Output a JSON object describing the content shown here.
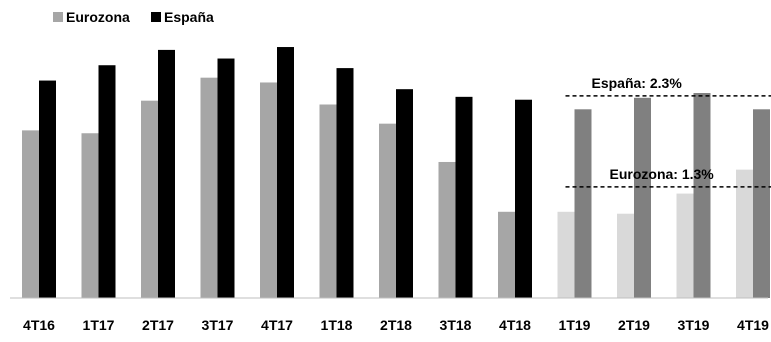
{
  "chart_data": {
    "type": "bar",
    "categories": [
      "4T16",
      "1T17",
      "2T17",
      "3T17",
      "4T17",
      "1T18",
      "2T18",
      "3T18",
      "4T18",
      "1T19",
      "2T19",
      "3T19",
      "4T19"
    ],
    "series": [
      {
        "name": "Eurozona",
        "values": [
          1.75,
          1.72,
          2.06,
          2.3,
          2.25,
          2.02,
          1.82,
          1.42,
          0.9,
          0.9,
          0.88,
          1.09,
          1.34
        ],
        "color": "#a6a6a6",
        "forecast_color": "#d9d9d9"
      },
      {
        "name": "España",
        "values": [
          2.27,
          2.43,
          2.59,
          2.5,
          2.62,
          2.4,
          2.18,
          2.1,
          2.07,
          1.97,
          2.09,
          2.14,
          1.97
        ],
        "color": "#000000",
        "forecast_color": "#808080"
      }
    ],
    "forecast_start_index": 9,
    "ylim": [
      0,
      2.85
    ],
    "legend_position": "top-left",
    "annotations": [
      {
        "label": "España: 2.3%",
        "value": 2.11,
        "from_index": 9,
        "to_index": 12
      },
      {
        "label": "Eurozona: 1.3%",
        "value": 1.16,
        "from_index": 9,
        "to_index": 12
      }
    ],
    "grid": false
  }
}
